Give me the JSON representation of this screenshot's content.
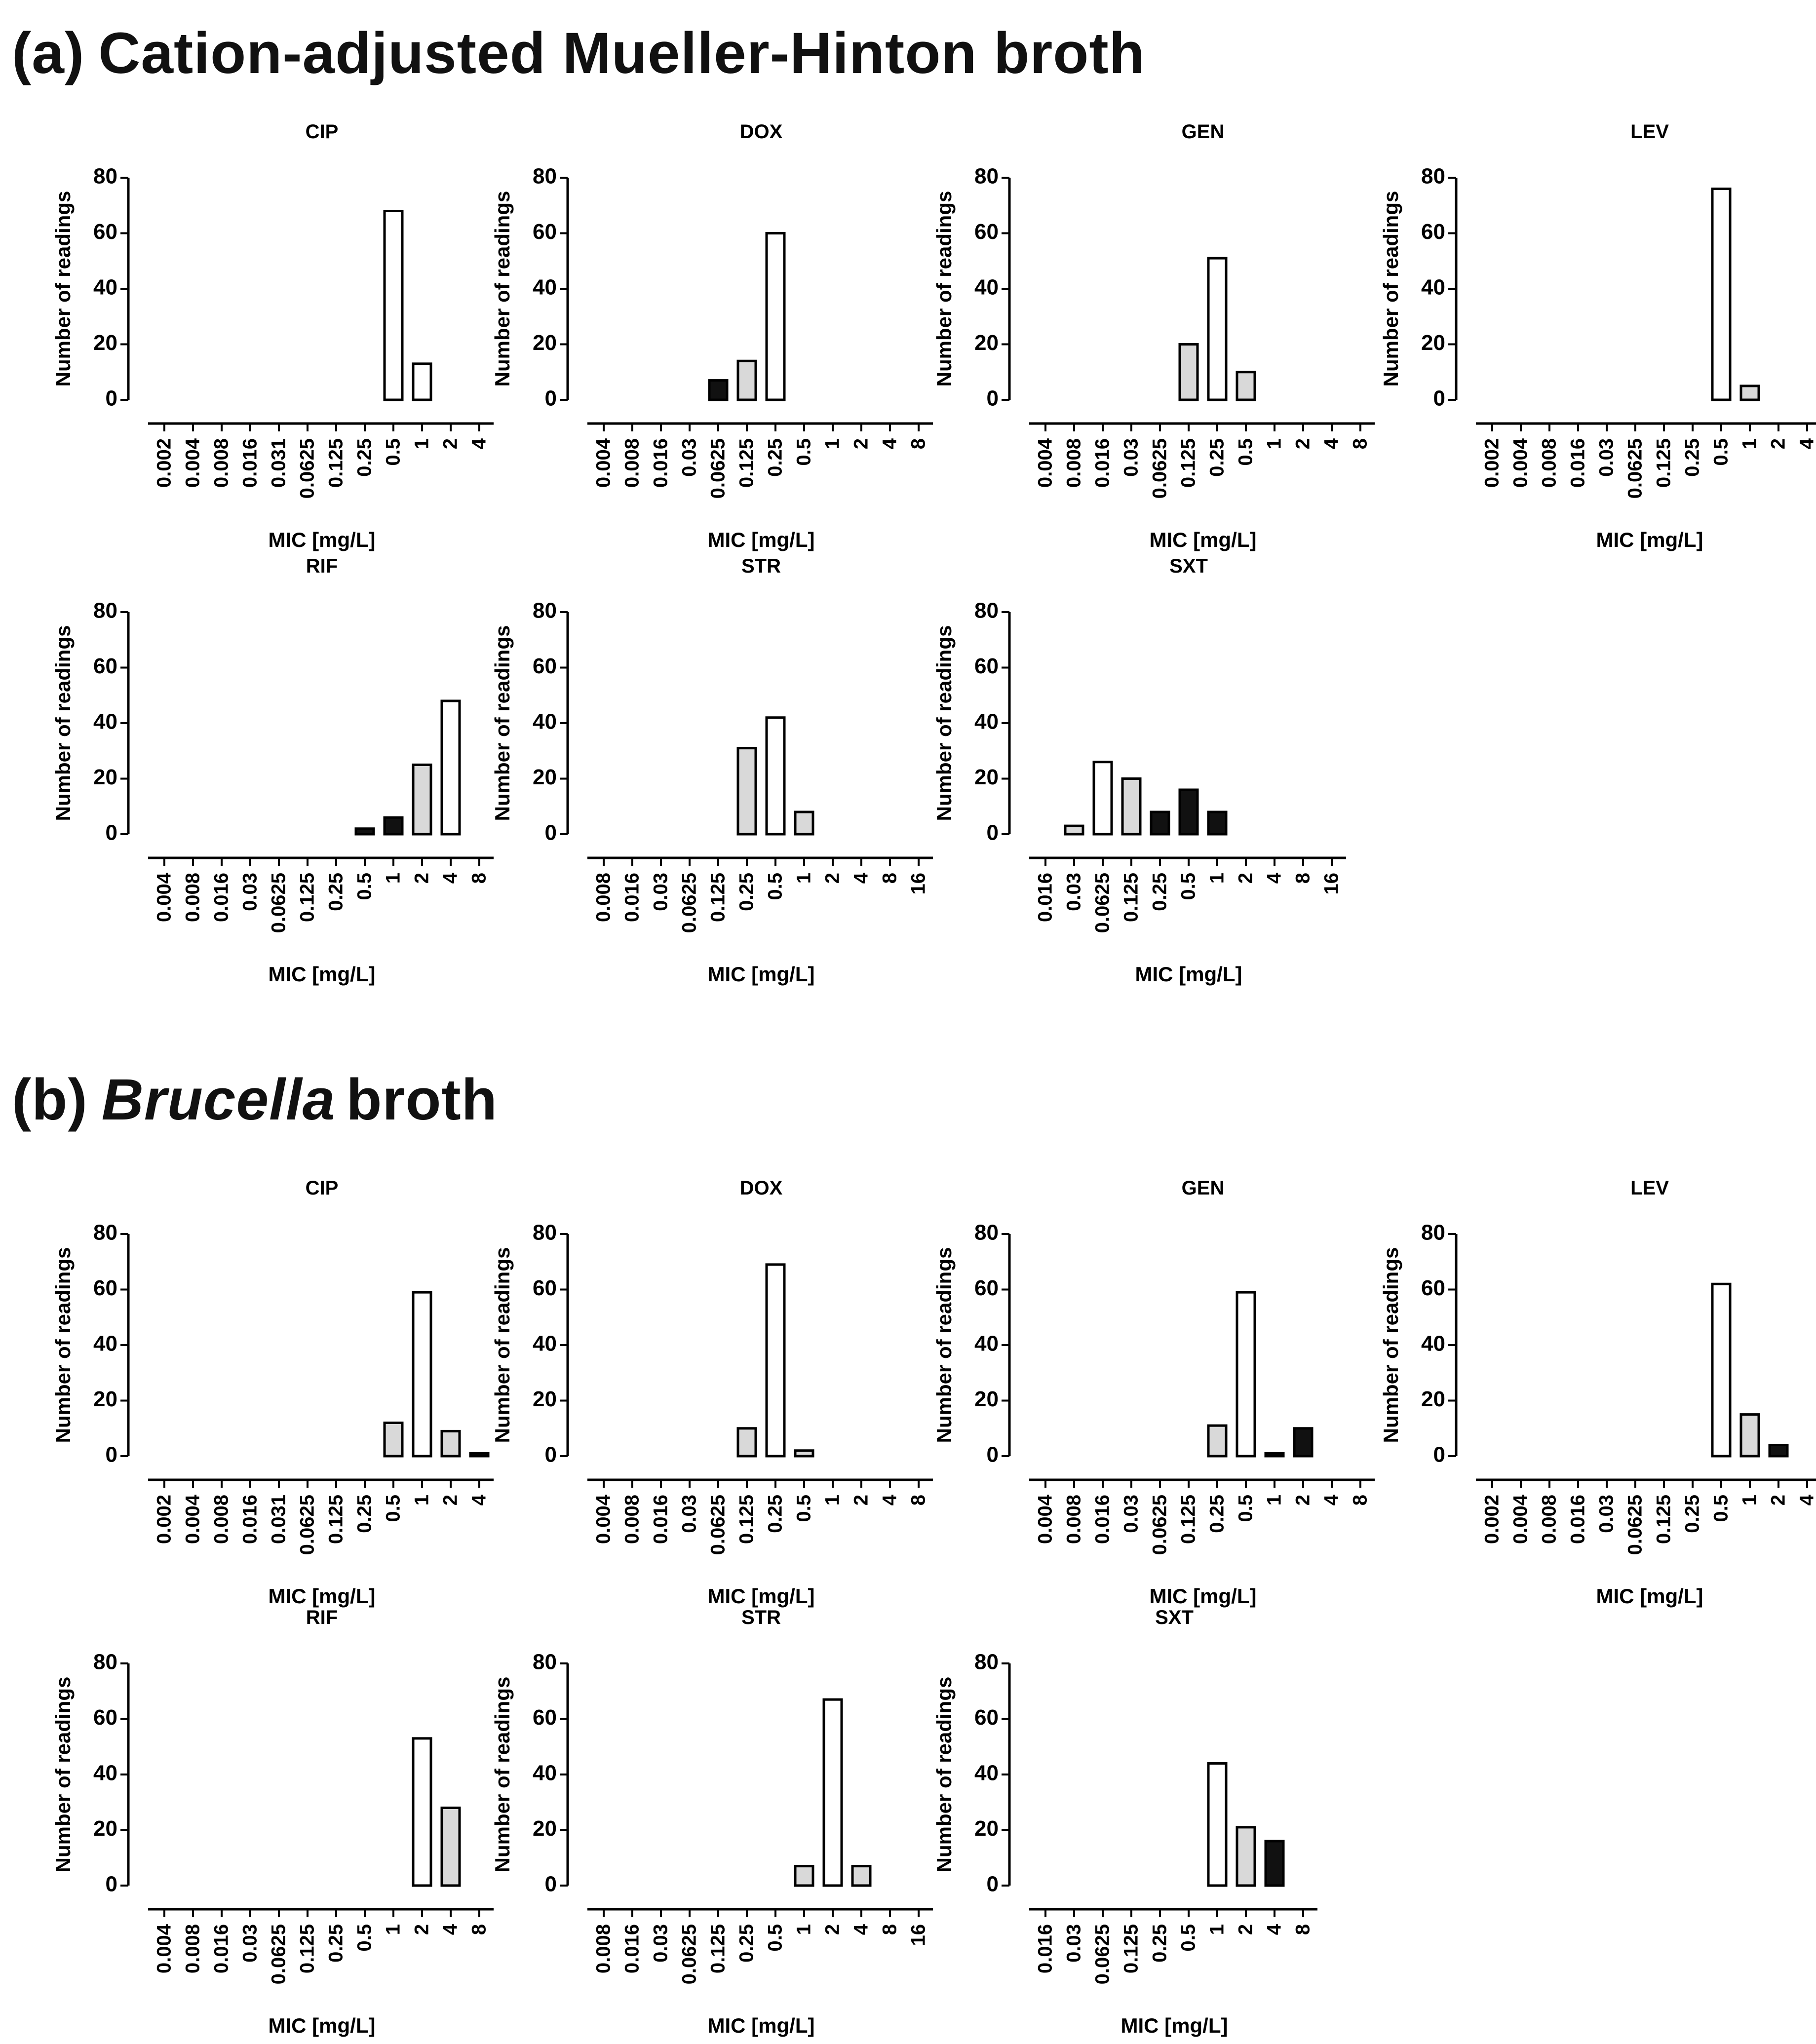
{
  "colors": {
    "white": "#ffffff",
    "gray": "#d9d9d9",
    "black": "#111111"
  },
  "sections": [
    {
      "label": "(a)",
      "title_plain": "Cation-adjusted Mueller-Hinton broth",
      "title_italic": "",
      "title_rest": ""
    },
    {
      "label": "(b)",
      "title_plain": "",
      "title_italic": "Brucella",
      "title_rest": "broth"
    }
  ],
  "chart_data": [
    {
      "section": "a",
      "type": "bar",
      "title": "CIP",
      "xlabel": "MIC [mg/L]",
      "ylabel": "Number of readings",
      "ylim": [
        0,
        80
      ],
      "yticks": [
        0,
        20,
        40,
        60,
        80
      ],
      "categories": [
        "0.002",
        "0.004",
        "0.008",
        "0.016",
        "0.031",
        "0.0625",
        "0.125",
        "0.25",
        "0.5",
        "1",
        "2",
        "4"
      ],
      "values": [
        0,
        0,
        0,
        0,
        0,
        0,
        0,
        0,
        68,
        13,
        0,
        0
      ],
      "fills": [
        "",
        "",
        "",
        "",
        "",
        "",
        "",
        "",
        "white",
        "white",
        "",
        ""
      ]
    },
    {
      "section": "a",
      "type": "bar",
      "title": "DOX",
      "xlabel": "MIC [mg/L]",
      "ylabel": "Number of readings",
      "ylim": [
        0,
        80
      ],
      "yticks": [
        0,
        20,
        40,
        60,
        80
      ],
      "categories": [
        "0.004",
        "0.008",
        "0.016",
        "0.03",
        "0.0625",
        "0.125",
        "0.25",
        "0.5",
        "1",
        "2",
        "4",
        "8"
      ],
      "values": [
        0,
        0,
        0,
        0,
        7,
        14,
        60,
        0,
        0,
        0,
        0,
        0
      ],
      "fills": [
        "",
        "",
        "",
        "",
        "black",
        "gray",
        "white",
        "",
        "",
        "",
        "",
        ""
      ]
    },
    {
      "section": "a",
      "type": "bar",
      "title": "GEN",
      "xlabel": "MIC [mg/L]",
      "ylabel": "Number of readings",
      "ylim": [
        0,
        80
      ],
      "yticks": [
        0,
        20,
        40,
        60,
        80
      ],
      "categories": [
        "0.004",
        "0.008",
        "0.016",
        "0.03",
        "0.0625",
        "0.125",
        "0.25",
        "0.5",
        "1",
        "2",
        "4",
        "8"
      ],
      "values": [
        0,
        0,
        0,
        0,
        0,
        20,
        51,
        10,
        0,
        0,
        0,
        0
      ],
      "fills": [
        "",
        "",
        "",
        "",
        "",
        "gray",
        "white",
        "gray",
        "",
        "",
        "",
        ""
      ]
    },
    {
      "section": "a",
      "type": "bar",
      "title": "LEV",
      "xlabel": "MIC [mg/L]",
      "ylabel": "Number of readings",
      "ylim": [
        0,
        80
      ],
      "yticks": [
        0,
        20,
        40,
        60,
        80
      ],
      "categories": [
        "0.002",
        "0.004",
        "0.008",
        "0.016",
        "0.03",
        "0.0625",
        "0.125",
        "0.25",
        "0.5",
        "1",
        "2",
        "4"
      ],
      "values": [
        0,
        0,
        0,
        0,
        0,
        0,
        0,
        0,
        76,
        5,
        0,
        0
      ],
      "fills": [
        "",
        "",
        "",
        "",
        "",
        "",
        "",
        "",
        "white",
        "gray",
        "",
        ""
      ]
    },
    {
      "section": "a",
      "type": "bar",
      "title": "RIF",
      "xlabel": "MIC [mg/L]",
      "ylabel": "Number of readings",
      "ylim": [
        0,
        80
      ],
      "yticks": [
        0,
        20,
        40,
        60,
        80
      ],
      "categories": [
        "0.004",
        "0.008",
        "0.016",
        "0.03",
        "0.0625",
        "0.125",
        "0.25",
        "0.5",
        "1",
        "2",
        "4",
        "8"
      ],
      "values": [
        0,
        0,
        0,
        0,
        0,
        0,
        0,
        2,
        6,
        25,
        48,
        0
      ],
      "fills": [
        "",
        "",
        "",
        "",
        "",
        "",
        "",
        "black",
        "black",
        "gray",
        "white",
        ""
      ]
    },
    {
      "section": "a",
      "type": "bar",
      "title": "STR",
      "xlabel": "MIC [mg/L]",
      "ylabel": "Number of readings",
      "ylim": [
        0,
        80
      ],
      "yticks": [
        0,
        20,
        40,
        60,
        80
      ],
      "categories": [
        "0.008",
        "0.016",
        "0.03",
        "0.0625",
        "0.125",
        "0.25",
        "0.5",
        "1",
        "2",
        "4",
        "8",
        "16"
      ],
      "values": [
        0,
        0,
        0,
        0,
        0,
        31,
        42,
        8,
        0,
        0,
        0,
        0
      ],
      "fills": [
        "",
        "",
        "",
        "",
        "",
        "gray",
        "white",
        "gray",
        "",
        "",
        "",
        ""
      ]
    },
    {
      "section": "a",
      "type": "bar",
      "title": "SXT",
      "xlabel": "MIC [mg/L]",
      "ylabel": "Number of readings",
      "ylim": [
        0,
        80
      ],
      "yticks": [
        0,
        20,
        40,
        60,
        80
      ],
      "categories": [
        "0.016",
        "0.03",
        "0.0625",
        "0.125",
        "0.25",
        "0.5",
        "1",
        "2",
        "4",
        "8",
        "16"
      ],
      "values": [
        0,
        3,
        26,
        20,
        8,
        16,
        8,
        0,
        0,
        0,
        0
      ],
      "fills": [
        "",
        "gray",
        "white",
        "gray",
        "black",
        "black",
        "black",
        "",
        "",
        "",
        ""
      ]
    },
    {
      "section": "b",
      "type": "bar",
      "title": "CIP",
      "xlabel": "MIC [mg/L]",
      "ylabel": "Number of readings",
      "ylim": [
        0,
        80
      ],
      "yticks": [
        0,
        20,
        40,
        60,
        80
      ],
      "categories": [
        "0.002",
        "0.004",
        "0.008",
        "0.016",
        "0.031",
        "0.0625",
        "0.125",
        "0.25",
        "0.5",
        "1",
        "2",
        "4"
      ],
      "values": [
        0,
        0,
        0,
        0,
        0,
        0,
        0,
        0,
        12,
        59,
        9,
        1
      ],
      "fills": [
        "",
        "",
        "",
        "",
        "",
        "",
        "",
        "",
        "gray",
        "white",
        "gray",
        "black"
      ]
    },
    {
      "section": "b",
      "type": "bar",
      "title": "DOX",
      "xlabel": "MIC [mg/L]",
      "ylabel": "Number of readings",
      "ylim": [
        0,
        80
      ],
      "yticks": [
        0,
        20,
        40,
        60,
        80
      ],
      "categories": [
        "0.004",
        "0.008",
        "0.016",
        "0.03",
        "0.0625",
        "0.125",
        "0.25",
        "0.5",
        "1",
        "2",
        "4",
        "8"
      ],
      "values": [
        0,
        0,
        0,
        0,
        0,
        10,
        69,
        2,
        0,
        0,
        0,
        0
      ],
      "fills": [
        "",
        "",
        "",
        "",
        "",
        "gray",
        "white",
        "gray",
        "",
        "",
        "",
        ""
      ]
    },
    {
      "section": "b",
      "type": "bar",
      "title": "GEN",
      "xlabel": "MIC [mg/L]",
      "ylabel": "Number of readings",
      "ylim": [
        0,
        80
      ],
      "yticks": [
        0,
        20,
        40,
        60,
        80
      ],
      "categories": [
        "0.004",
        "0.008",
        "0.016",
        "0.03",
        "0.0625",
        "0.125",
        "0.25",
        "0.5",
        "1",
        "2",
        "4",
        "8"
      ],
      "values": [
        0,
        0,
        0,
        0,
        0,
        0,
        11,
        59,
        1,
        10,
        0,
        0
      ],
      "fills": [
        "",
        "",
        "",
        "",
        "",
        "",
        "gray",
        "white",
        "black",
        "black",
        "",
        ""
      ]
    },
    {
      "section": "b",
      "type": "bar",
      "title": "LEV",
      "xlabel": "MIC [mg/L]",
      "ylabel": "Number of readings",
      "ylim": [
        0,
        80
      ],
      "yticks": [
        0,
        20,
        40,
        60,
        80
      ],
      "categories": [
        "0.002",
        "0.004",
        "0.008",
        "0.016",
        "0.03",
        "0.0625",
        "0.125",
        "0.25",
        "0.5",
        "1",
        "2",
        "4"
      ],
      "values": [
        0,
        0,
        0,
        0,
        0,
        0,
        0,
        0,
        62,
        15,
        4,
        0
      ],
      "fills": [
        "",
        "",
        "",
        "",
        "",
        "",
        "",
        "",
        "white",
        "gray",
        "black",
        ""
      ]
    },
    {
      "section": "b",
      "type": "bar",
      "title": "RIF",
      "xlabel": "MIC [mg/L]",
      "ylabel": "Number of readings",
      "ylim": [
        0,
        80
      ],
      "yticks": [
        0,
        20,
        40,
        60,
        80
      ],
      "categories": [
        "0.004",
        "0.008",
        "0.016",
        "0.03",
        "0.0625",
        "0.125",
        "0.25",
        "0.5",
        "1",
        "2",
        "4",
        "8"
      ],
      "values": [
        0,
        0,
        0,
        0,
        0,
        0,
        0,
        0,
        0,
        53,
        28,
        0
      ],
      "fills": [
        "",
        "",
        "",
        "",
        "",
        "",
        "",
        "",
        "",
        "white",
        "gray",
        ""
      ]
    },
    {
      "section": "b",
      "type": "bar",
      "title": "STR",
      "xlabel": "MIC [mg/L]",
      "ylabel": "Number of readings",
      "ylim": [
        0,
        80
      ],
      "yticks": [
        0,
        20,
        40,
        60,
        80
      ],
      "categories": [
        "0.008",
        "0.016",
        "0.03",
        "0.0625",
        "0.125",
        "0.25",
        "0.5",
        "1",
        "2",
        "4",
        "8",
        "16"
      ],
      "values": [
        0,
        0,
        0,
        0,
        0,
        0,
        0,
        7,
        67,
        7,
        0,
        0
      ],
      "fills": [
        "",
        "",
        "",
        "",
        "",
        "",
        "",
        "gray",
        "white",
        "gray",
        "",
        ""
      ]
    },
    {
      "section": "b",
      "type": "bar",
      "title": "SXT",
      "xlabel": "MIC [mg/L]",
      "ylabel": "Number of readings",
      "ylim": [
        0,
        80
      ],
      "yticks": [
        0,
        20,
        40,
        60,
        80
      ],
      "categories": [
        "0.016",
        "0.03",
        "0.0625",
        "0.125",
        "0.25",
        "0.5",
        "1",
        "2",
        "4",
        "8"
      ],
      "values": [
        0,
        0,
        0,
        0,
        0,
        0,
        44,
        21,
        16,
        0
      ],
      "fills": [
        "",
        "",
        "",
        "",
        "",
        "",
        "white",
        "gray",
        "black",
        ""
      ]
    }
  ]
}
